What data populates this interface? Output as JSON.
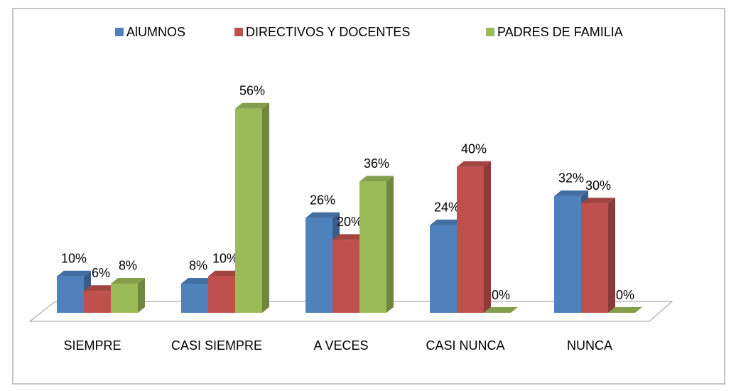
{
  "chart_data": {
    "type": "bar3d",
    "categories": [
      "SIEMPRE",
      "CASI SIEMPRE",
      "A VECES",
      "CASI NUNCA",
      "NUNCA"
    ],
    "series": [
      {
        "name": "AlUMNOS",
        "color": "#4f81bd",
        "values": [
          10,
          8,
          26,
          24,
          32
        ],
        "value_labels": [
          "10%",
          "8%",
          "26%",
          "24%",
          "32%"
        ]
      },
      {
        "name": "DIRECTIVOS Y DOCENTES",
        "color": "#c0504d",
        "values": [
          6,
          10,
          20,
          40,
          30
        ],
        "value_labels": [
          "6%",
          "10%",
          "20%",
          "40%",
          "30%"
        ]
      },
      {
        "name": "PADRES DE FAMILIA",
        "color": "#9bbb59",
        "values": [
          8,
          56,
          36,
          0,
          0
        ],
        "value_labels": [
          "8%",
          "56%",
          "36%",
          "0%",
          "0%"
        ]
      }
    ],
    "legend": "top"
  }
}
